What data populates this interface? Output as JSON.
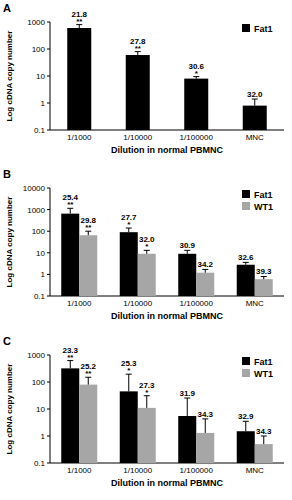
{
  "chart_data": [
    {
      "type": "bar",
      "title": "A",
      "x_label": "Dilution in normal PBMNC",
      "y_label": "Log cDNA copy number",
      "categories": [
        "1/1000",
        "1/10000",
        "1/100000",
        "MNC"
      ],
      "log": "y",
      "ylim": [
        0.1,
        1000
      ],
      "yticks": [
        0.1,
        1,
        10,
        100,
        1000
      ],
      "grid": false,
      "legend": "top-right",
      "series": [
        {
          "name": "Fat1",
          "color": "#000000",
          "values": [
            600,
            60,
            8,
            0.8
          ],
          "errors": [
            200,
            20,
            1.5,
            0.6
          ],
          "annotations": [
            "21.8",
            "27.8",
            "30.6",
            "32.0"
          ],
          "significance": [
            "**",
            "**",
            "*",
            null
          ]
        }
      ]
    },
    {
      "type": "bar",
      "title": "B",
      "x_label": "Dilution in normal PBMNC",
      "y_label": "Log cDNA copy number",
      "categories": [
        "1/1000",
        "1/10000",
        "1/100000",
        "MNC"
      ],
      "log": "y",
      "ylim": [
        0.1,
        10000
      ],
      "yticks": [
        0.1,
        1,
        10,
        100,
        1000,
        10000
      ],
      "grid": false,
      "legend": "top-right",
      "series": [
        {
          "name": "Fat1",
          "color": "#000000",
          "values": [
            650,
            90,
            9,
            2.8
          ],
          "errors": [
            500,
            50,
            4,
            0.8
          ],
          "annotations": [
            "25.4",
            "27.7",
            "30.9",
            "32.6"
          ],
          "significance": [
            "**",
            "*",
            null,
            null
          ]
        },
        {
          "name": "WT1",
          "color": "#a6a6a6",
          "values": [
            65,
            9,
            1.2,
            0.6
          ],
          "errors": [
            35,
            4,
            0.5,
            0.2
          ],
          "annotations": [
            "29.8",
            "32.0",
            "34.2",
            "39.3"
          ],
          "significance": [
            "**",
            "*",
            null,
            null
          ]
        }
      ]
    },
    {
      "type": "bar",
      "title": "C",
      "x_label": "Dilution in normal PBMNC",
      "y_label": "Log cDNA copy number",
      "categories": [
        "1/1000",
        "1/10000",
        "1/100000",
        "MNC"
      ],
      "log": "y",
      "ylim": [
        0.1,
        1000
      ],
      "yticks": [
        0.1,
        1,
        10,
        100,
        1000
      ],
      "grid": false,
      "legend": "top-right",
      "series": [
        {
          "name": "Fat1",
          "color": "#000000",
          "values": [
            320,
            45,
            5.5,
            1.5
          ],
          "errors": [
            300,
            150,
            20,
            2
          ],
          "annotations": [
            "23.3",
            "25.3",
            "31.9",
            "32.9"
          ],
          "significance": [
            "**",
            "*",
            null,
            null
          ]
        },
        {
          "name": "WT1",
          "color": "#a6a6a6",
          "values": [
            80,
            11,
            1.3,
            0.5
          ],
          "errors": [
            70,
            20,
            3,
            0.5
          ],
          "annotations": [
            "25.2",
            "27.3",
            "34.3",
            "34.3"
          ],
          "significance": [
            "**",
            "*",
            null,
            null
          ]
        }
      ]
    }
  ]
}
